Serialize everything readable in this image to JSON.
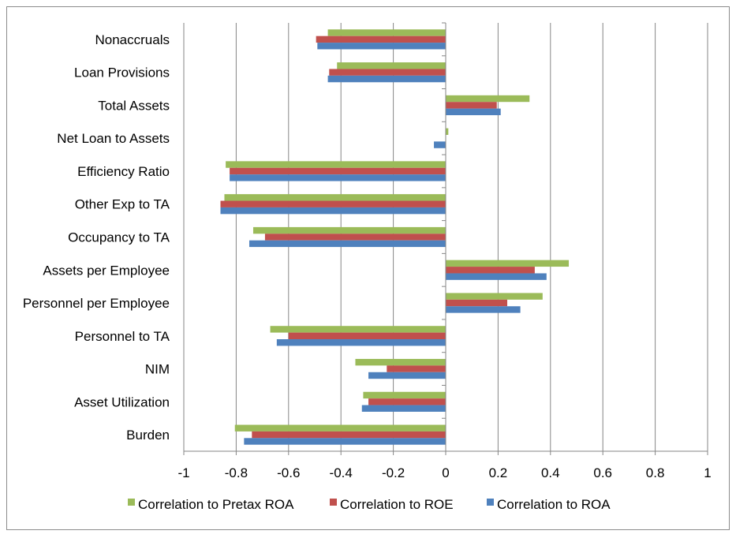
{
  "chart_data": {
    "type": "bar",
    "orientation": "horizontal",
    "categories": [
      "Nonaccruals",
      "Loan Provisions",
      "Total Assets",
      "Net Loan to Assets",
      "Efficiency Ratio",
      "Other Exp to TA",
      "Occupancy to TA",
      "Assets per Employee",
      "Personnel per Employee",
      "Personnel to TA",
      "NIM",
      "Asset Utilization",
      "Burden"
    ],
    "series": [
      {
        "name": "Correlation to Pretax ROA",
        "color": "#9BBB59",
        "values": [
          -0.45,
          -0.415,
          0.32,
          0.01,
          -0.84,
          -0.845,
          -0.735,
          0.47,
          0.37,
          -0.67,
          -0.345,
          -0.315,
          -0.805
        ]
      },
      {
        "name": "Correlation to ROE",
        "color": "#C0504D",
        "values": [
          -0.495,
          -0.445,
          0.195,
          0.0,
          -0.825,
          -0.86,
          -0.69,
          0.34,
          0.235,
          -0.6,
          -0.225,
          -0.295,
          -0.74
        ]
      },
      {
        "name": "Correlation to ROA",
        "color": "#4F81BD",
        "values": [
          -0.49,
          -0.45,
          0.21,
          -0.045,
          -0.825,
          -0.86,
          -0.75,
          0.385,
          0.285,
          -0.645,
          -0.295,
          -0.32,
          -0.77
        ]
      }
    ],
    "xlim": [
      -1,
      1
    ],
    "xticks": [
      "-1",
      "-0.8",
      "-0.6",
      "-0.4",
      "-0.2",
      "0",
      "0.2",
      "0.4",
      "0.6",
      "0.8",
      "1"
    ],
    "xtick_values": [
      -1,
      -0.8,
      -0.6,
      -0.4,
      -0.2,
      0,
      0.2,
      0.4,
      0.6,
      0.8,
      1
    ],
    "gridlines": true,
    "legend_position": "bottom",
    "title": "",
    "xlabel": "",
    "ylabel": ""
  }
}
